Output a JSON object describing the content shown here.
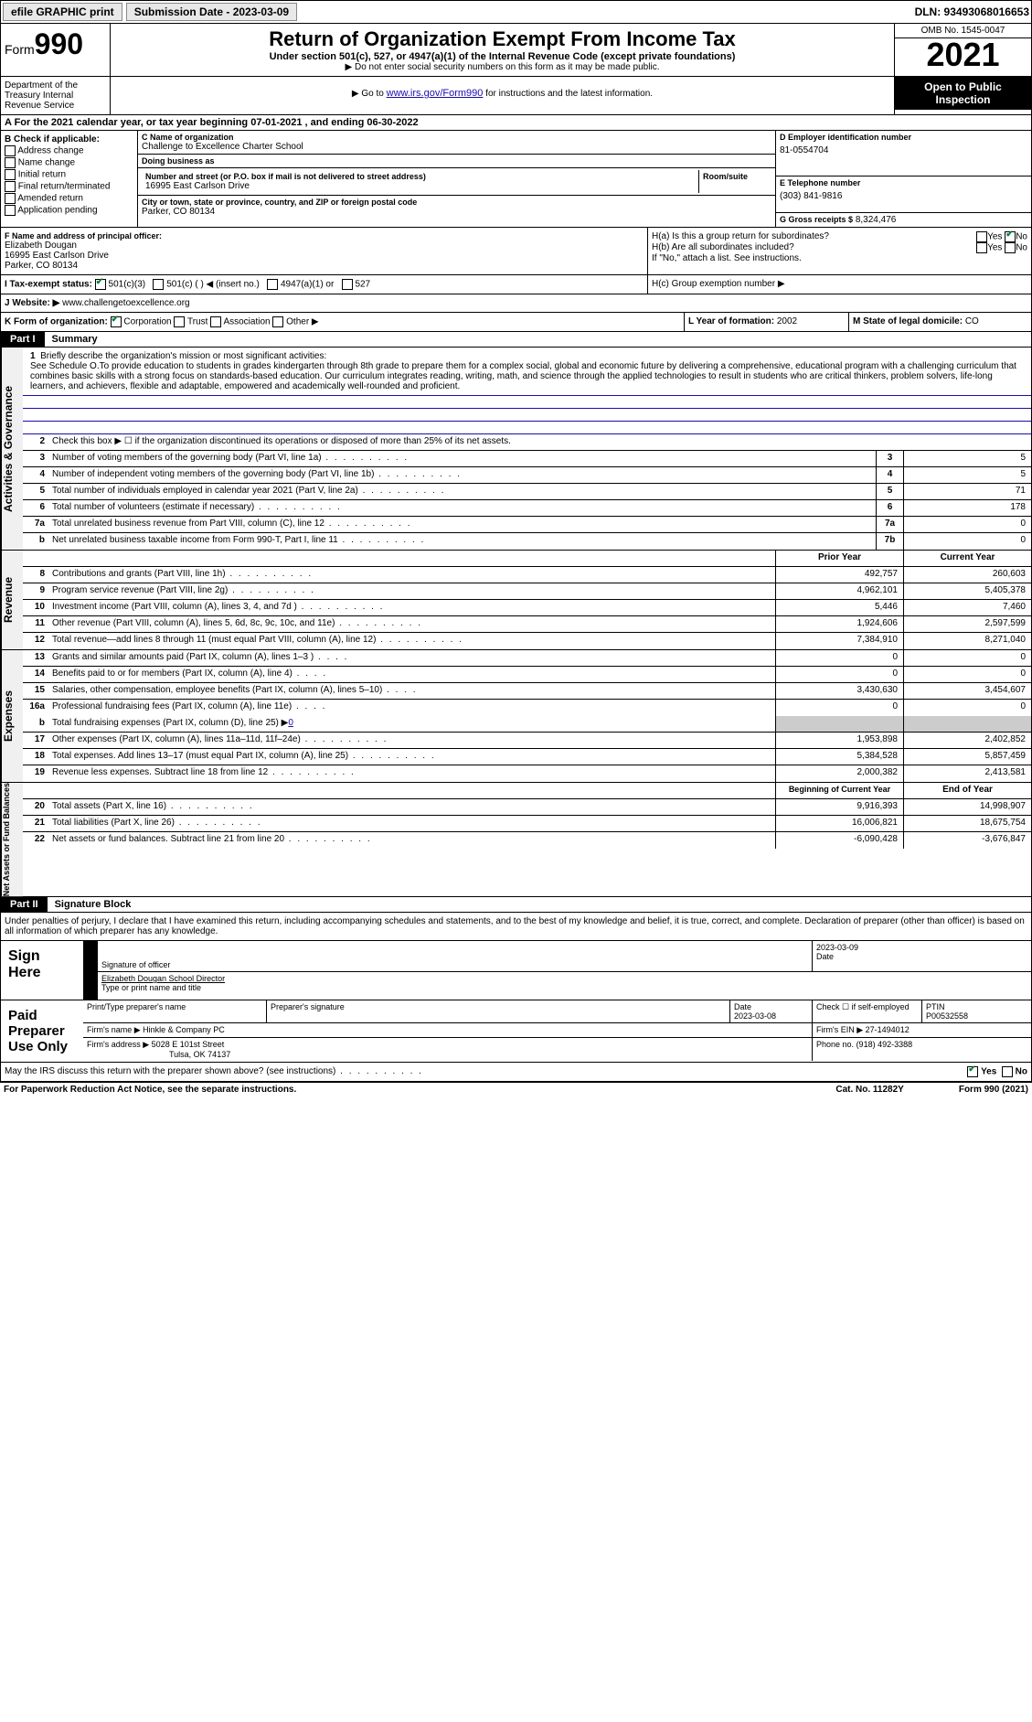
{
  "topbar": {
    "efile": "efile GRAPHIC print",
    "submission": "Submission Date - 2023-03-09",
    "dln": "DLN: 93493068016653"
  },
  "header": {
    "form_word": "Form",
    "form_no": "990",
    "title": "Return of Organization Exempt From Income Tax",
    "sub": "Under section 501(c), 527, or 4947(a)(1) of the Internal Revenue Code (except private foundations)",
    "note1": "▶ Do not enter social security numbers on this form as it may be made public.",
    "note2_pre": "▶ Go to ",
    "note2_link": "www.irs.gov/Form990",
    "note2_post": " for instructions and the latest information.",
    "omb": "OMB No. 1545-0047",
    "year": "2021",
    "inspection": "Open to Public Inspection",
    "dept": "Department of the Treasury Internal Revenue Service"
  },
  "row_a": {
    "text_pre": "A  For the 2021 calendar year, or tax year beginning ",
    "begin": "07-01-2021",
    "mid": " , and ending ",
    "end": "06-30-2022"
  },
  "col_b": {
    "title": "B Check if applicable:",
    "items": [
      "Address change",
      "Name change",
      "Initial return",
      "Final return/terminated",
      "Amended return",
      "Application pending"
    ]
  },
  "col_c": {
    "name_label": "C Name of organization",
    "name": "Challenge to Excellence Charter School",
    "dba_label": "Doing business as",
    "dba": "",
    "addr_label": "Number and street (or P.O. box if mail is not delivered to street address)",
    "addr": "16995 East Carlson Drive",
    "room_label": "Room/suite",
    "city_label": "City or town, state or province, country, and ZIP or foreign postal code",
    "city": "Parker, CO  80134"
  },
  "col_d": {
    "ein_label": "D Employer identification number",
    "ein": "81-0554704",
    "phone_label": "E Telephone number",
    "phone": "(303) 841-9816",
    "gross_label": "G Gross receipts $",
    "gross": "8,324,476"
  },
  "row_f": {
    "label": "F Name and address of principal officer:",
    "name": "Elizabeth Dougan",
    "addr1": "16995 East Carlson Drive",
    "addr2": "Parker, CO  80134"
  },
  "row_h": {
    "ha": "H(a)  Is this a group return for subordinates?",
    "hb": "H(b)  Are all subordinates included?",
    "hb_note": "If \"No,\" attach a list. See instructions.",
    "hc": "H(c)  Group exemption number ▶",
    "yes": "Yes",
    "no": "No"
  },
  "row_i": {
    "label": "I   Tax-exempt status:",
    "opt1": "501(c)(3)",
    "opt2": "501(c) (   ) ◀ (insert no.)",
    "opt3": "4947(a)(1) or",
    "opt4": "527"
  },
  "row_j": {
    "label": "J   Website: ▶",
    "value": "www.challengetoexcellence.org"
  },
  "row_k": {
    "label": "K Form of organization:",
    "opts": [
      "Corporation",
      "Trust",
      "Association",
      "Other ▶"
    ]
  },
  "row_l": {
    "label": "L Year of formation:",
    "value": "2002"
  },
  "row_m": {
    "label": "M State of legal domicile:",
    "value": "CO"
  },
  "part1": {
    "label": "Part I",
    "title": "Summary"
  },
  "mission": {
    "num": "1",
    "label": "Briefly describe the organization's mission or most significant activities:",
    "text": "See Schedule O.To provide education to students in grades kindergarten through 8th grade to prepare them for a complex social, global and economic future by delivering a comprehensive, educational program with a challenging curriculum that combines basic skills with a strong focus on standards-based education. Our curriculum integrates reading, writing, math, and science through the applied technologies to result in students who are critical thinkers, problem solvers, life-long learners, and achievers, flexible and adaptable, empowered and academically well-rounded and proficient."
  },
  "governance": {
    "section_label": "Activities & Governance",
    "line2": "Check this box ▶ ☐ if the organization discontinued its operations or disposed of more than 25% of its net assets.",
    "lines": [
      {
        "num": "3",
        "text": "Number of voting members of the governing body (Part VI, line 1a)",
        "box": "3",
        "val": "5"
      },
      {
        "num": "4",
        "text": "Number of independent voting members of the governing body (Part VI, line 1b)",
        "box": "4",
        "val": "5"
      },
      {
        "num": "5",
        "text": "Total number of individuals employed in calendar year 2021 (Part V, line 2a)",
        "box": "5",
        "val": "71"
      },
      {
        "num": "6",
        "text": "Total number of volunteers (estimate if necessary)",
        "box": "6",
        "val": "178"
      },
      {
        "num": "7a",
        "text": "Total unrelated business revenue from Part VIII, column (C), line 12",
        "box": "7a",
        "val": "0"
      },
      {
        "num": "b",
        "text": "Net unrelated business taxable income from Form 990-T, Part I, line 11",
        "box": "7b",
        "val": "0"
      }
    ]
  },
  "revenue": {
    "section_label": "Revenue",
    "hdr_prior": "Prior Year",
    "hdr_current": "Current Year",
    "lines": [
      {
        "num": "8",
        "text": "Contributions and grants (Part VIII, line 1h)",
        "prior": "492,757",
        "current": "260,603"
      },
      {
        "num": "9",
        "text": "Program service revenue (Part VIII, line 2g)",
        "prior": "4,962,101",
        "current": "5,405,378"
      },
      {
        "num": "10",
        "text": "Investment income (Part VIII, column (A), lines 3, 4, and 7d )",
        "prior": "5,446",
        "current": "7,460"
      },
      {
        "num": "11",
        "text": "Other revenue (Part VIII, column (A), lines 5, 6d, 8c, 9c, 10c, and 11e)",
        "prior": "1,924,606",
        "current": "2,597,599"
      },
      {
        "num": "12",
        "text": "Total revenue—add lines 8 through 11 (must equal Part VIII, column (A), line 12)",
        "prior": "7,384,910",
        "current": "8,271,040"
      }
    ]
  },
  "expenses": {
    "section_label": "Expenses",
    "lines": [
      {
        "num": "13",
        "text": "Grants and similar amounts paid (Part IX, column (A), lines 1–3 )",
        "prior": "0",
        "current": "0"
      },
      {
        "num": "14",
        "text": "Benefits paid to or for members (Part IX, column (A), line 4)",
        "prior": "0",
        "current": "0"
      },
      {
        "num": "15",
        "text": "Salaries, other compensation, employee benefits (Part IX, column (A), lines 5–10)",
        "prior": "3,430,630",
        "current": "3,454,607"
      },
      {
        "num": "16a",
        "text": "Professional fundraising fees (Part IX, column (A), line 11e)",
        "prior": "0",
        "current": "0"
      }
    ],
    "line_b": {
      "num": "b",
      "text": "Total fundraising expenses (Part IX, column (D), line 25) ▶",
      "val": "0"
    },
    "lines2": [
      {
        "num": "17",
        "text": "Other expenses (Part IX, column (A), lines 11a–11d, 11f–24e)",
        "prior": "1,953,898",
        "current": "2,402,852"
      },
      {
        "num": "18",
        "text": "Total expenses. Add lines 13–17 (must equal Part IX, column (A), line 25)",
        "prior": "5,384,528",
        "current": "5,857,459"
      },
      {
        "num": "19",
        "text": "Revenue less expenses. Subtract line 18 from line 12",
        "prior": "2,000,382",
        "current": "2,413,581"
      }
    ]
  },
  "netassets": {
    "section_label": "Net Assets or Fund Balances",
    "hdr_begin": "Beginning of Current Year",
    "hdr_end": "End of Year",
    "lines": [
      {
        "num": "20",
        "text": "Total assets (Part X, line 16)",
        "prior": "9,916,393",
        "current": "14,998,907"
      },
      {
        "num": "21",
        "text": "Total liabilities (Part X, line 26)",
        "prior": "16,006,821",
        "current": "18,675,754"
      },
      {
        "num": "22",
        "text": "Net assets or fund balances. Subtract line 21 from line 20",
        "prior": "-6,090,428",
        "current": "-3,676,847"
      }
    ]
  },
  "part2": {
    "label": "Part II",
    "title": "Signature Block",
    "declaration": "Under penalties of perjury, I declare that I have examined this return, including accompanying schedules and statements, and to the best of my knowledge and belief, it is true, correct, and complete. Declaration of preparer (other than officer) is based on all information of which preparer has any knowledge."
  },
  "sign": {
    "label": "Sign Here",
    "sig_label": "Signature of officer",
    "date": "2023-03-09",
    "date_label": "Date",
    "name": "Elizabeth Dougan  School Director",
    "name_label": "Type or print name and title"
  },
  "preparer": {
    "label": "Paid Preparer Use Only",
    "name_label": "Print/Type preparer's name",
    "sig_label": "Preparer's signature",
    "date_label": "Date",
    "date": "2023-03-08",
    "check_label": "Check ☐ if self-employed",
    "ptin_label": "PTIN",
    "ptin": "P00532558",
    "firm_label": "Firm's name   ▶",
    "firm": "Hinkle & Company PC",
    "ein_label": "Firm's EIN ▶",
    "ein": "27-1494012",
    "addr_label": "Firm's address ▶",
    "addr1": "5028 E 101st Street",
    "addr2": "Tulsa, OK  74137",
    "phone_label": "Phone no.",
    "phone": "(918) 492-3388"
  },
  "discuss": {
    "text": "May the IRS discuss this return with the preparer shown above? (see instructions)",
    "yes": "Yes",
    "no": "No"
  },
  "footer": {
    "left": "For Paperwork Reduction Act Notice, see the separate instructions.",
    "mid": "Cat. No. 11282Y",
    "right": "Form 990 (2021)"
  }
}
